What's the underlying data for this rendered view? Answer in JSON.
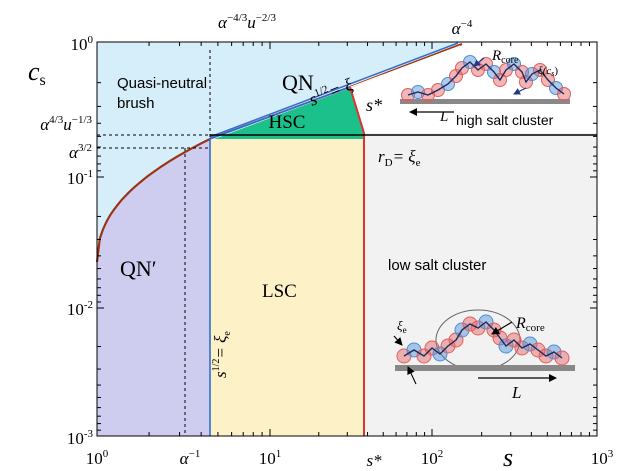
{
  "axes": {
    "x_var": "s",
    "y_var": "c",
    "y_var_sub": "s",
    "x_ticks": [
      {
        "base": "10",
        "exp": "0"
      },
      {
        "base": "10",
        "exp": "1"
      },
      {
        "base": "10",
        "exp": "2"
      },
      {
        "base": "10",
        "exp": "3"
      }
    ],
    "y_ticks": [
      {
        "base": "10",
        "exp": "0"
      },
      {
        "base": "10",
        "exp": "-1"
      },
      {
        "base": "10",
        "exp": "-2"
      },
      {
        "base": "10",
        "exp": "-3"
      }
    ],
    "x_special": [
      {
        "base": "α",
        "exp": "−1"
      },
      {
        "base": "s*",
        "exp": ""
      }
    ],
    "y_special": [
      {
        "a": "α",
        "a_exp": "4/3",
        "b": "u",
        "b_exp": "−1/3"
      },
      {
        "a": "α",
        "a_exp": "3/2",
        "b": "",
        "b_exp": ""
      }
    ],
    "top_labels": [
      {
        "a": "α",
        "a_exp": "−4/3",
        "b": "u",
        "b_exp": "−2/3"
      },
      {
        "a": "α",
        "a_exp": "−4",
        "b": "",
        "b_exp": ""
      }
    ]
  },
  "regions": {
    "qn": "QN",
    "qn_prime": "QN′",
    "hsc": "HSC",
    "lsc": "LSC",
    "quasi_neutral_line1": "Quasi-neutral",
    "quasi_neutral_line2": "brush",
    "low_salt_cluster": "low salt cluster",
    "high_salt_cluster": "high salt cluster"
  },
  "boundaries": {
    "s_half_xi": {
      "lhs": "s",
      "exp": "1/2",
      "rhs": "= ξ"
    },
    "s_star": "s*",
    "rd_xie": {
      "lhs": "r",
      "lhs_sub": "D",
      "rhs": "= ξ",
      "rhs_sub": "e"
    },
    "s_half_xie": {
      "lhs": "s",
      "exp": "1/2",
      "rhs": "= ξ",
      "rhs_sub": "e"
    }
  },
  "insets": {
    "high_salt": {
      "r_core": "R",
      "r_core_sub": "core",
      "xi_cs": "ξ(c",
      "xi_cs_sub": "s",
      "xi_cs_close": ")",
      "length": "L"
    },
    "low_salt": {
      "xi_e": "ξ",
      "xi_e_sub": "e",
      "r_core": "R",
      "r_core_sub": "core",
      "length": "L"
    }
  },
  "colors": {
    "light_blue": "#d6eef9",
    "lavender": "#cfcdef",
    "light_yellow": "#fdf1c8",
    "light_gray": "#f2f2f2",
    "hsc_green": "#1cc08a",
    "brown_curve": "#9a3412",
    "red_line": "#e03030",
    "blue_line": "#2f6fd0",
    "bead_red": "#e35d5d",
    "bead_blue": "#4a8fd8",
    "substrate": "#888888"
  }
}
